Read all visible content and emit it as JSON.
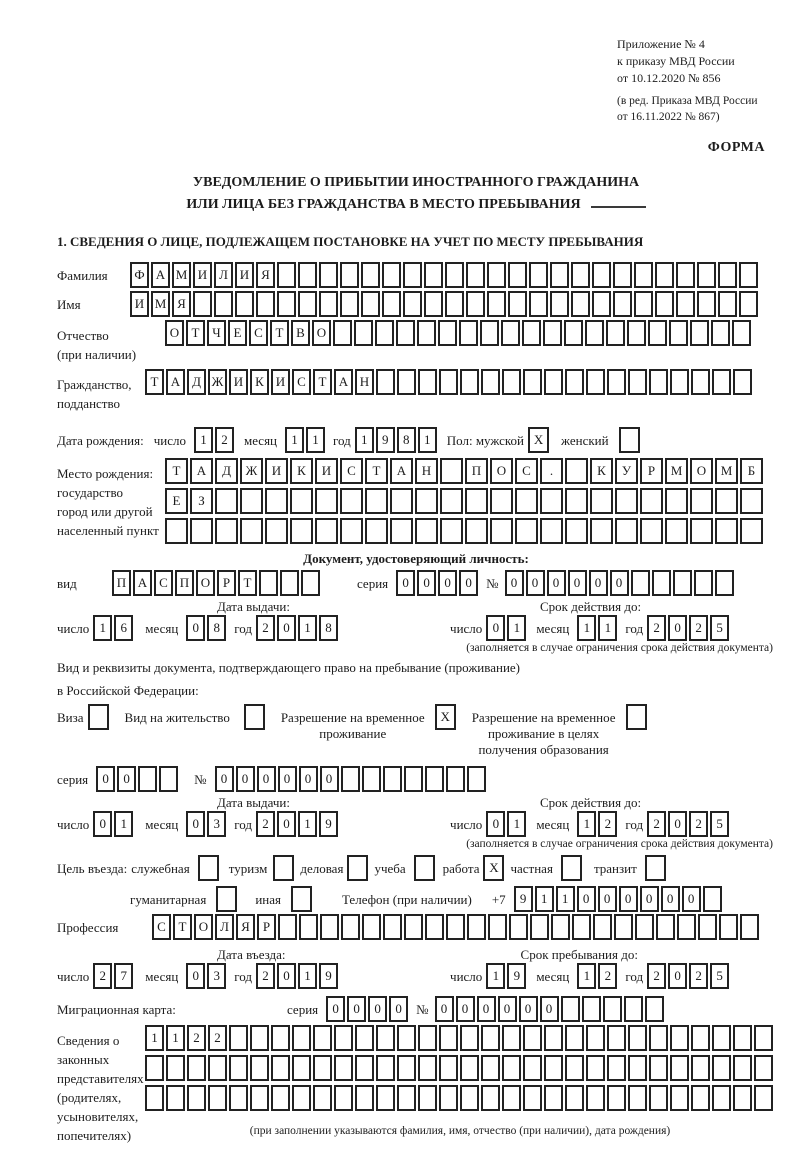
{
  "header": {
    "annex1": "Приложение № 4",
    "annex2": "к приказу МВД России",
    "annex3": "от 10.12.2020 № 856",
    "ed1": "(в ред. Приказа МВД России",
    "ed2": "от 16.11.2022 № 867)",
    "forma": "ФОРМА"
  },
  "title": {
    "line1": "УВЕДОМЛЕНИЕ О ПРИБЫТИИ ИНОСТРАННОГО ГРАЖДАНИНА",
    "line2": "ИЛИ ЛИЦА БЕЗ ГРАЖДАНСТВА В МЕСТО ПРЕБЫВАНИЯ"
  },
  "section1": "1. СВЕДЕНИЯ О ЛИЦЕ, ПОДЛЕЖАЩЕМ ПОСТАНОВКЕ НА УЧЕТ ПО МЕСТУ ПРЕБЫВАНИЯ",
  "lbls": {
    "day": "число",
    "mon": "месяц",
    "year": "год",
    "seria": "серия",
    "num": "№"
  },
  "surname": {
    "label": "Фамилия",
    "cells": {
      "t": "ФАМИЛИЯ",
      "n": 30
    }
  },
  "firstname": {
    "label": "Имя",
    "cells": {
      "t": "ИМЯ",
      "n": 30
    }
  },
  "patronymic": {
    "label": "Отчество",
    "sub": "(при наличии)",
    "cells": {
      "t": "ОТЧЕСТВО",
      "n": 28
    }
  },
  "citizenship": {
    "label": "Гражданство,",
    "sub": "подданство",
    "cells": {
      "t": "ТАДЖИКИСТАН",
      "n": 29
    }
  },
  "birth": {
    "label": "Дата рождения:",
    "day": {
      "t": "12",
      "n": 2
    },
    "mon": {
      "t": "11",
      "n": 2
    },
    "year": {
      "t": "1981",
      "n": 4
    },
    "sex_label": "Пол: мужской",
    "male": {
      "t": "X",
      "n": 1
    },
    "female_label": "женский",
    "female": {
      "t": "",
      "n": 1
    }
  },
  "birthplace": {
    "l1": "Место рождения:",
    "l2": "государство",
    "l3": "город или другой",
    "l4": "населенный пункт",
    "row1": {
      "t": "ТАДЖИКИСТАН ПОС. КУРМОМБ",
      "n": 24
    },
    "row2": {
      "t": "ЕЗ",
      "n": 24
    },
    "row3": {
      "t": "",
      "n": 24
    }
  },
  "iddoc": {
    "header": "Документ, удостоверяющий личность:",
    "vid_label": "вид",
    "vid": {
      "t": "ПАСПОРТ",
      "n": 10
    },
    "seria": {
      "t": "0000",
      "n": 4
    },
    "num": {
      "t": "000000",
      "n": 11
    },
    "issue_h": "Дата выдачи:",
    "valid_h": "Срок действия до:",
    "i_day": {
      "t": "16",
      "n": 2
    },
    "i_mon": {
      "t": "08",
      "n": 2
    },
    "i_year": {
      "t": "2018",
      "n": 4
    },
    "v_day": {
      "t": "01",
      "n": 2
    },
    "v_mon": {
      "t": "11",
      "n": 2
    },
    "v_year": {
      "t": "2025",
      "n": 4
    },
    "hint": "(заполняется в случае ограничения срока действия документа)"
  },
  "resdoc": {
    "line1": "Вид и реквизиты документа, подтверждающего право на пребывание (проживание)",
    "line2": "в Российской Федерации:",
    "visa_label": "Виза",
    "visa": {
      "t": "",
      "n": 1
    },
    "vnj_label": "Вид на жительство",
    "vnj": {
      "t": "",
      "n": 1
    },
    "rvp_l1": "Разрешение на временное",
    "rvp_l2": "проживание",
    "rvp": {
      "t": "X",
      "n": 1
    },
    "rvpo_l1": "Разрешение на временное",
    "rvpo_l2": "проживание в целях",
    "rvpo_l3": "получения образования",
    "rvpo": {
      "t": "",
      "n": 1
    },
    "seria": {
      "t": "00",
      "n": 4
    },
    "num": {
      "t": "000000",
      "n": 13
    },
    "issue_h": "Дата выдачи:",
    "valid_h": "Срок действия до:",
    "i_day": {
      "t": "01",
      "n": 2
    },
    "i_mon": {
      "t": "03",
      "n": 2
    },
    "i_year": {
      "t": "2019",
      "n": 4
    },
    "v_day": {
      "t": "01",
      "n": 2
    },
    "v_mon": {
      "t": "12",
      "n": 2
    },
    "v_year": {
      "t": "2025",
      "n": 4
    },
    "hint": "(заполняется в случае ограничения срока действия документа)"
  },
  "purpose": {
    "label": "Цель въезда:",
    "o1_l": "служебная",
    "o1": {
      "t": "",
      "n": 1
    },
    "o2_l": "туризм",
    "o2": {
      "t": "",
      "n": 1
    },
    "o3_l": "деловая",
    "o3": {
      "t": "",
      "n": 1
    },
    "o4_l": "учеба",
    "o4": {
      "t": "",
      "n": 1
    },
    "o5_l": "работа",
    "o5": {
      "t": "X",
      "n": 1
    },
    "o6_l": "частная",
    "o6": {
      "t": "",
      "n": 1
    },
    "o7_l": "транзит",
    "o7": {
      "t": "",
      "n": 1
    },
    "o8_l": "гуманитарная",
    "o8": {
      "t": "",
      "n": 1
    },
    "o9_l": "иная",
    "o9": {
      "t": "",
      "n": 1
    },
    "phone_label": "Телефон (при наличии)",
    "phone_prefix": "+7",
    "phone": {
      "t": "911000000",
      "n": 10
    }
  },
  "profession": {
    "label": "Профессия",
    "cells": {
      "t": "СТОЛЯР",
      "n": 29
    }
  },
  "entry": {
    "issue_h": "Дата въезда:",
    "valid_h": "Срок пребывания до:",
    "e_day": {
      "t": "27",
      "n": 2
    },
    "e_mon": {
      "t": "03",
      "n": 2
    },
    "e_year": {
      "t": "2019",
      "n": 4
    },
    "s_day": {
      "t": "19",
      "n": 2
    },
    "s_mon": {
      "t": "12",
      "n": 2
    },
    "s_year": {
      "t": "2025",
      "n": 4
    }
  },
  "migration": {
    "label": "Миграционная карта:",
    "seria": {
      "t": "0000",
      "n": 4
    },
    "num": {
      "t": "000000",
      "n": 11
    }
  },
  "legal": {
    "l1": "Сведения о",
    "l2": "законных",
    "l3": "представителях",
    "l4": "(родителях,",
    "l5": "усыновителях,",
    "l6": "попечителях)",
    "row1": {
      "t": "1122",
      "n": 30
    },
    "row2": {
      "t": "",
      "n": 30
    },
    "row3": {
      "t": "",
      "n": 30
    },
    "hint": "(при заполнении указываются фамилия, имя, отчество (при наличии), дата рождения)"
  }
}
